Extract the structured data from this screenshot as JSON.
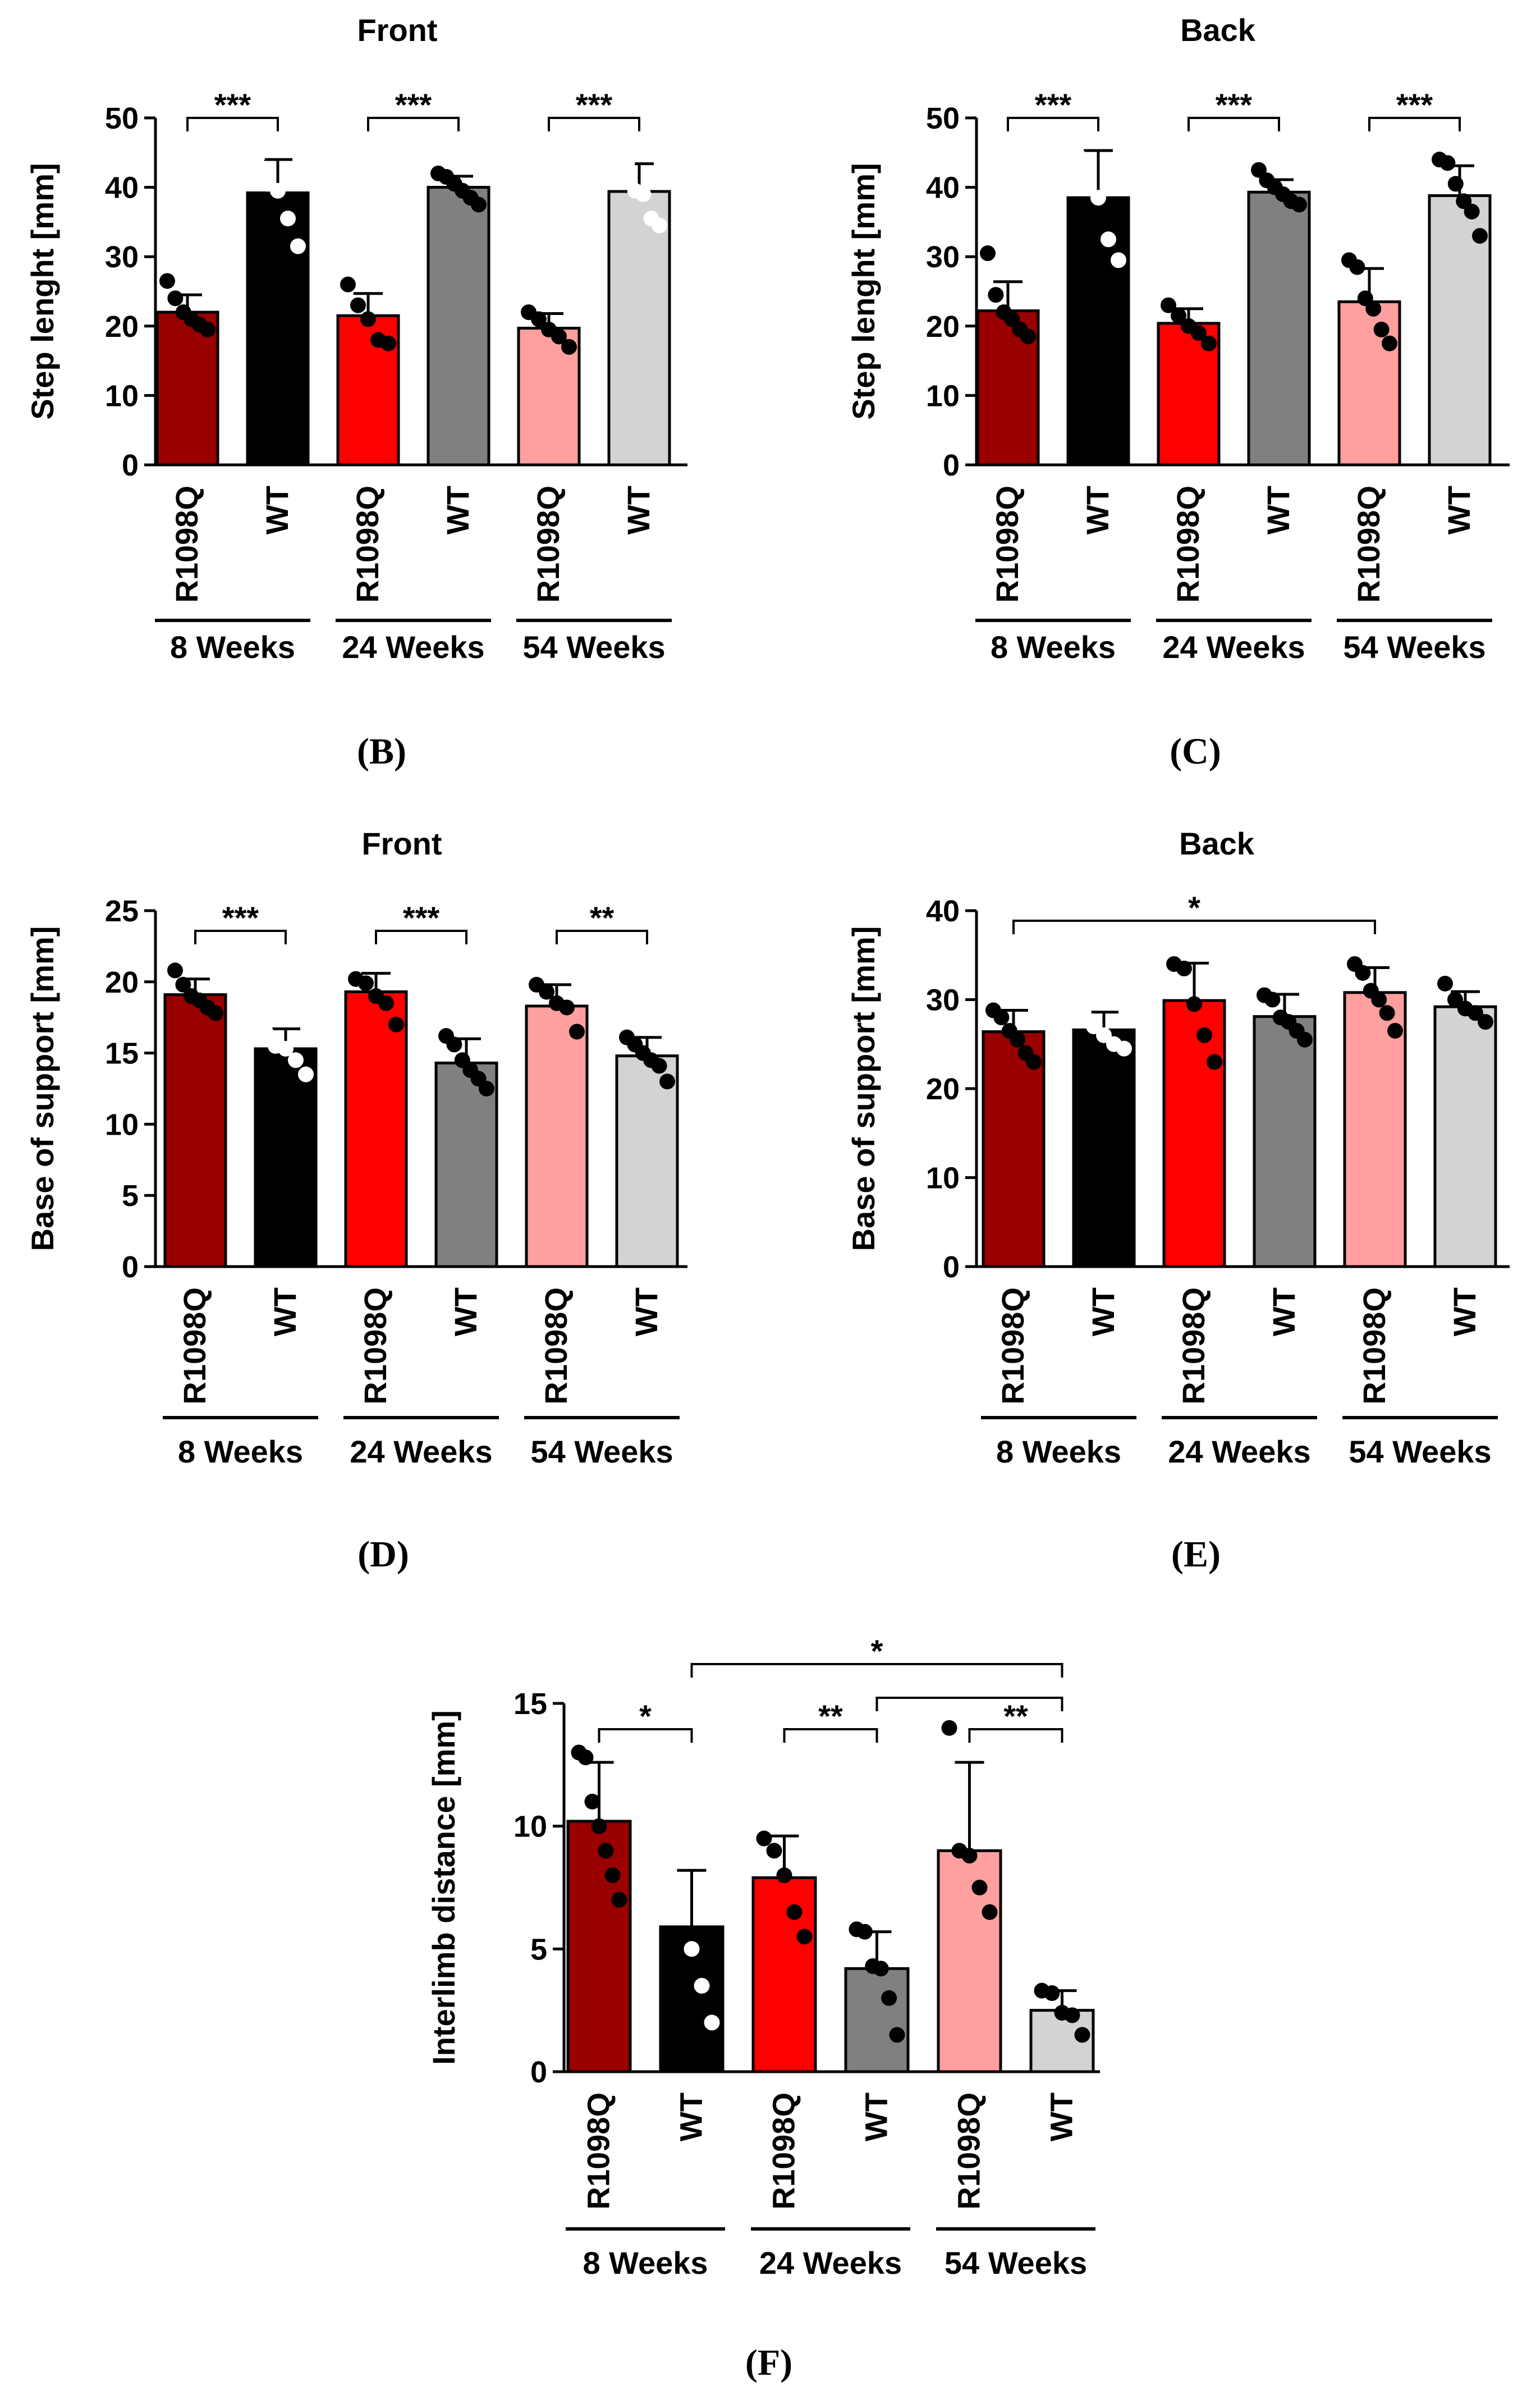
{
  "colors": {
    "r8": "#990000",
    "wt8": "#000000",
    "r24": "#ff0000",
    "wt24": "#808080",
    "r54": "#ff9f9f",
    "wt54": "#d3d3d3"
  },
  "chart_data": [
    {
      "id": "B",
      "type": "bar",
      "panel_label": "(B)",
      "title": "Front",
      "ylabel": "Step lenght [mm]",
      "ylim": [
        0,
        50
      ],
      "yticks": [
        0,
        10,
        20,
        30,
        40,
        50
      ],
      "categories": [
        "R1098Q",
        "WT",
        "R1098Q",
        "WT",
        "R1098Q",
        "WT"
      ],
      "groups": [
        "8 Weeks",
        "24 Weeks",
        "54 Weeks"
      ],
      "values": [
        22.0,
        39.2,
        21.5,
        40.0,
        19.7,
        39.4
      ],
      "errors": [
        2.5,
        4.8,
        3.2,
        1.6,
        2.1,
        4.0
      ],
      "points": [
        [
          26.5,
          24.0,
          22.0,
          21.0,
          20.2,
          19.5
        ],
        [
          44.5,
          40.5,
          39.5,
          35.5,
          31.5
        ],
        [
          26.0,
          23.0,
          21.0,
          18.0,
          17.5
        ],
        [
          42.0,
          41.5,
          40.5,
          39.5,
          38.5,
          37.5
        ],
        [
          22.0,
          21.0,
          19.5,
          18.5,
          17.0
        ],
        [
          44.0,
          43.5,
          39.5,
          39.0,
          35.5,
          34.5
        ]
      ],
      "point_colors": [
        "#000000",
        "#ffffff",
        "#000000",
        "#000000",
        "#000000",
        "#ffffff"
      ],
      "significance": [
        {
          "from": 0,
          "to": 1,
          "label": "***"
        },
        {
          "from": 2,
          "to": 3,
          "label": "***"
        },
        {
          "from": 4,
          "to": 5,
          "label": "***"
        }
      ]
    },
    {
      "id": "C",
      "type": "bar",
      "panel_label": "(C)",
      "title": "Back",
      "ylabel": "Step lenght [mm]",
      "ylim": [
        0,
        50
      ],
      "yticks": [
        0,
        10,
        20,
        30,
        40,
        50
      ],
      "categories": [
        "R1098Q",
        "WT",
        "R1098Q",
        "WT",
        "R1098Q",
        "WT"
      ],
      "groups": [
        "8 Weeks",
        "24 Weeks",
        "54 Weeks"
      ],
      "values": [
        22.2,
        38.5,
        20.4,
        39.3,
        23.5,
        38.8
      ],
      "errors": [
        4.2,
        6.8,
        2.1,
        1.8,
        4.8,
        4.3
      ],
      "points": [
        [
          30.5,
          24.5,
          22.0,
          21.0,
          19.5,
          18.5
        ],
        [
          44.5,
          40.5,
          38.5,
          32.5,
          29.5
        ],
        [
          23.0,
          21.5,
          20.0,
          19.0,
          17.5
        ],
        [
          42.5,
          41.0,
          40.0,
          39.0,
          38.0,
          37.5
        ],
        [
          29.5,
          28.5,
          24.0,
          22.5,
          19.5,
          17.5
        ],
        [
          44.0,
          43.5,
          40.5,
          38.0,
          36.5,
          33.0
        ]
      ],
      "point_colors": [
        "#000000",
        "#ffffff",
        "#000000",
        "#000000",
        "#000000",
        "#000000"
      ],
      "significance": [
        {
          "from": 0,
          "to": 1,
          "label": "***"
        },
        {
          "from": 2,
          "to": 3,
          "label": "***"
        },
        {
          "from": 4,
          "to": 5,
          "label": "***"
        }
      ]
    },
    {
      "id": "D",
      "type": "bar",
      "panel_label": "(D)",
      "title": "Front",
      "ylabel": "Base of support [mm]",
      "ylim": [
        0,
        25
      ],
      "yticks": [
        0,
        5,
        10,
        15,
        20,
        25
      ],
      "categories": [
        "R1098Q",
        "WT",
        "R1098Q",
        "WT",
        "R1098Q",
        "WT"
      ],
      "groups": [
        "8 Weeks",
        "24 Weeks",
        "54 Weeks"
      ],
      "values": [
        19.1,
        15.3,
        19.3,
        14.3,
        18.3,
        14.8
      ],
      "errors": [
        1.1,
        1.4,
        1.3,
        1.7,
        1.5,
        1.3
      ],
      "points": [
        [
          20.8,
          19.8,
          19.0,
          18.7,
          18.2,
          17.8
        ],
        [
          16.5,
          15.5,
          15.3,
          14.5,
          13.5
        ],
        [
          20.2,
          19.9,
          19.0,
          18.5,
          17.0
        ],
        [
          16.2,
          15.6,
          14.5,
          13.8,
          13.2,
          12.5
        ],
        [
          19.8,
          19.3,
          18.5,
          18.2,
          16.5
        ],
        [
          16.1,
          15.6,
          15.0,
          14.5,
          14.1,
          13.0
        ]
      ],
      "point_colors": [
        "#000000",
        "#ffffff",
        "#000000",
        "#000000",
        "#000000",
        "#000000"
      ],
      "significance": [
        {
          "from": 0,
          "to": 1,
          "label": "***"
        },
        {
          "from": 2,
          "to": 3,
          "label": "***"
        },
        {
          "from": 4,
          "to": 5,
          "label": "**"
        }
      ]
    },
    {
      "id": "E",
      "type": "bar",
      "panel_label": "(E)",
      "title": "Back",
      "ylabel": "Base of support [mm]",
      "ylim": [
        0,
        40
      ],
      "yticks": [
        0,
        10,
        20,
        30,
        40
      ],
      "categories": [
        "R1098Q",
        "WT",
        "R1098Q",
        "WT",
        "R1098Q",
        "WT"
      ],
      "groups": [
        "8 Weeks",
        "24 Weeks",
        "54 Weeks"
      ],
      "values": [
        26.4,
        26.6,
        29.9,
        28.1,
        30.8,
        29.2
      ],
      "errors": [
        2.4,
        2.0,
        4.2,
        2.5,
        2.8,
        1.7
      ],
      "points": [
        [
          28.8,
          28.0,
          26.5,
          25.5,
          24.0,
          23.0
        ],
        [
          28.5,
          27.0,
          26.0,
          25.0,
          24.5
        ],
        [
          34.0,
          33.5,
          29.5,
          26.0,
          23.0
        ],
        [
          30.5,
          30.0,
          28.0,
          27.5,
          26.5,
          25.5
        ],
        [
          34.0,
          33.0,
          31.0,
          30.0,
          28.5,
          26.5
        ],
        [
          31.8,
          30.0,
          29.0,
          28.5,
          27.5
        ]
      ],
      "point_colors": [
        "#000000",
        "#ffffff",
        "#000000",
        "#000000",
        "#000000",
        "#000000"
      ],
      "significance": [
        {
          "from": 0,
          "to": 4,
          "label": "*"
        }
      ]
    },
    {
      "id": "F",
      "type": "bar",
      "panel_label": "(F)",
      "title": "",
      "ylabel": "Interlimb distance [mm]",
      "ylim": [
        0,
        15
      ],
      "yticks": [
        0,
        5,
        10,
        15
      ],
      "categories": [
        "R1098Q",
        "WT",
        "R1098Q",
        "WT",
        "R1098Q",
        "WT"
      ],
      "groups": [
        "8 Weeks",
        "24 Weeks",
        "54 Weeks"
      ],
      "values": [
        10.2,
        5.9,
        7.9,
        4.2,
        9.0,
        2.5
      ],
      "errors": [
        2.4,
        2.3,
        1.7,
        1.5,
        3.6,
        0.8
      ],
      "points": [
        [
          13.0,
          12.8,
          11.0,
          10.0,
          9.0,
          8.0,
          7.0
        ],
        [
          9.0,
          6.5,
          5.0,
          3.5,
          2.0
        ],
        [
          9.5,
          9.0,
          8.0,
          6.5,
          5.5
        ],
        [
          5.8,
          5.7,
          4.3,
          4.2,
          3.0,
          1.5
        ],
        [
          14.0,
          9.0,
          8.8,
          7.5,
          6.5
        ],
        [
          3.3,
          3.2,
          2.4,
          2.3,
          1.5
        ]
      ],
      "point_colors": [
        "#000000",
        "#ffffff",
        "#000000",
        "#000000",
        "#000000",
        "#000000"
      ],
      "significance": [
        {
          "from": 0,
          "to": 1,
          "label": "*"
        },
        {
          "from": 2,
          "to": 3,
          "label": "**"
        },
        {
          "from": 4,
          "to": 5,
          "label": "**"
        },
        {
          "from": 3,
          "to": 5,
          "label": ""
        },
        {
          "from": 1,
          "to": 5,
          "label": "*"
        }
      ]
    }
  ]
}
